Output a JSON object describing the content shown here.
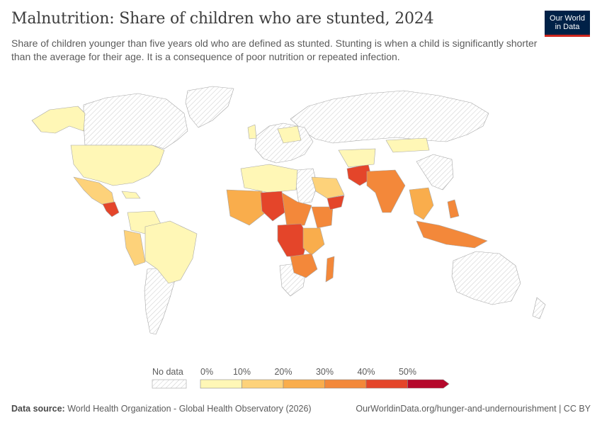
{
  "header": {
    "title": "Malnutrition: Share of children who are stunted, 2024",
    "subtitle": "Share of children younger than five years old who are defined as stunted. Stunting is when a child is significantly shorter than the average for their age. It is a consequence of poor nutrition or repeated infection.",
    "logo_line1": "Our World",
    "logo_line2": "in Data"
  },
  "legend": {
    "no_data_label": "No data",
    "tick_labels": [
      "0%",
      "10%",
      "20%",
      "30%",
      "40%",
      "50%"
    ],
    "bins": [
      {
        "from": 0,
        "to": 10,
        "color": "#fff7b6"
      },
      {
        "from": 10,
        "to": 20,
        "color": "#fdd27a"
      },
      {
        "from": 20,
        "to": 30,
        "color": "#f9ad4c"
      },
      {
        "from": 30,
        "to": 40,
        "color": "#f3883a"
      },
      {
        "from": 40,
        "to": 50,
        "color": "#e4452a"
      },
      {
        "from": 50,
        "to": null,
        "color": "#b5082b"
      }
    ]
  },
  "footer": {
    "source_label": "Data source:",
    "source_text": "World Health Organization - Global Health Observatory (2026)",
    "url": "OurWorldinData.org/hunger-and-undernourishment | CC BY"
  },
  "colors": {
    "land_border": "#a6a6a6",
    "no_data_stripe": "#cfcfcf"
  }
}
